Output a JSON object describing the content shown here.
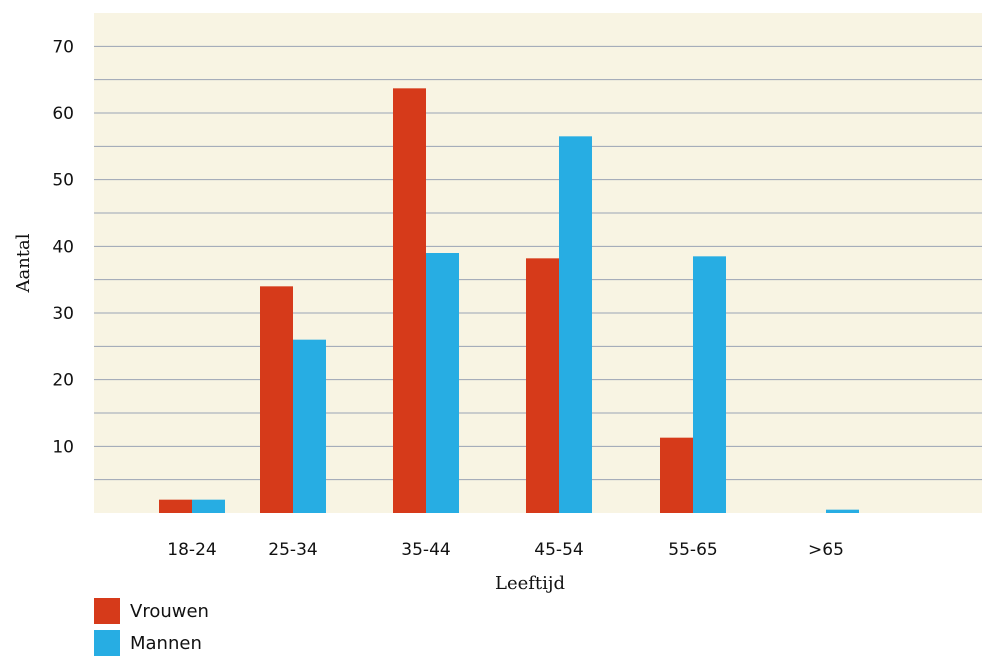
{
  "chart_data": {
    "type": "bar",
    "title": "",
    "xlabel": "Leeftijd",
    "ylabel": "Aantal",
    "categories": [
      "18-24",
      "25-34",
      "35-44",
      "45-54",
      "55-65",
      ">65"
    ],
    "series": [
      {
        "name": "Vrouwen",
        "color": "#d63a1a",
        "values": [
          2,
          34,
          63.7,
          38.2,
          11.3,
          0
        ]
      },
      {
        "name": "Mannen",
        "color": "#27ade3",
        "values": [
          2,
          26,
          39,
          56.5,
          38.5,
          0.5
        ]
      }
    ],
    "ylim": [
      0,
      75
    ],
    "yticks": [
      10,
      20,
      30,
      40,
      50,
      60,
      70
    ],
    "grid": true,
    "background": "#f8f4e3",
    "gridline_color": "#9aa3b5",
    "legend_position": "bottom-left"
  }
}
